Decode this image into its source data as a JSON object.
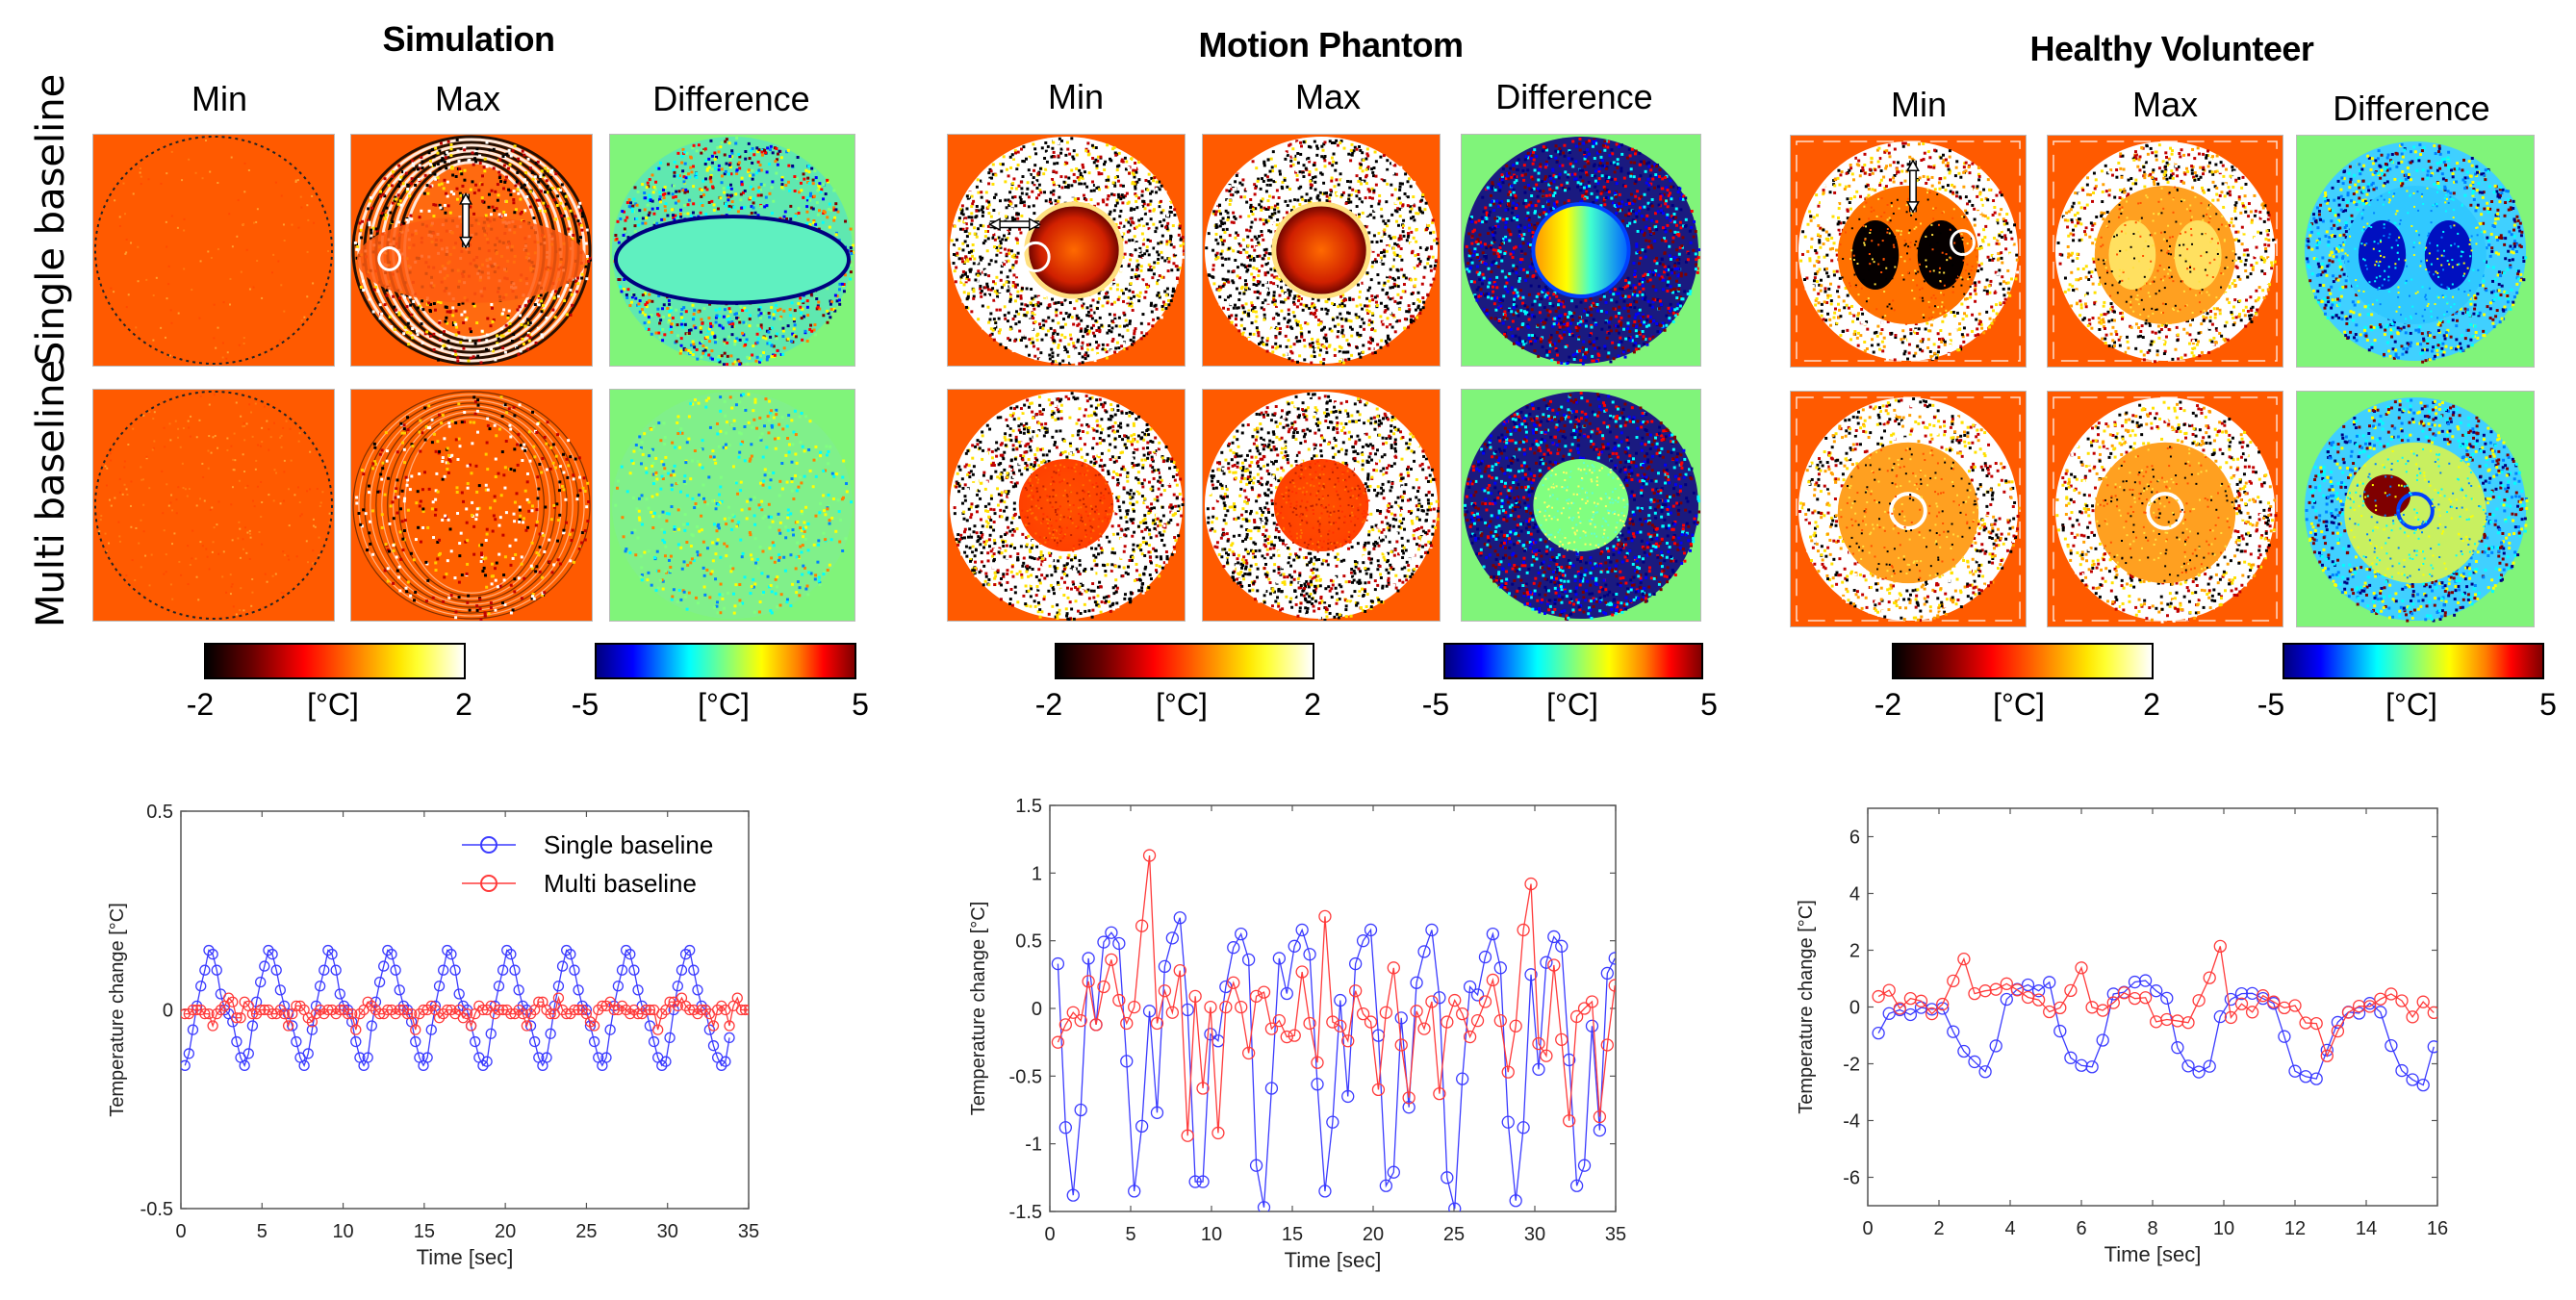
{
  "groups": [
    {
      "title": "Simulation",
      "columns": [
        "Min",
        "Max",
        "Difference"
      ],
      "theme": "simulation"
    },
    {
      "title": "Motion Phantom",
      "columns": [
        "Min",
        "Max",
        "Difference"
      ],
      "theme": "phantom"
    },
    {
      "title": "Healthy Volunteer",
      "columns": [
        "Min",
        "Max",
        "Difference"
      ],
      "theme": "volunteer"
    }
  ],
  "row_labels": [
    "Single baseline",
    "Multi baseline"
  ],
  "colorbars": {
    "temperature": {
      "colormap": "hot",
      "min_label": "-2",
      "unit_label": "[°C]",
      "max_label": "2"
    },
    "difference": {
      "colormap": "jet",
      "min_label": "-5",
      "unit_label": "[°C]",
      "max_label": "5"
    }
  },
  "colors": {
    "single_baseline": "#3b3bff",
    "multi_baseline": "#ff3b3b",
    "map_background_orange": "#ff5a00",
    "map_background_green": "#80f47a"
  },
  "chart_data": [
    {
      "type": "line",
      "title": "Simulation",
      "xlabel": "Time [sec]",
      "ylabel": "Temperature change [°C]",
      "xlim": [
        0,
        35
      ],
      "ylim": [
        -0.5,
        0.5
      ],
      "xticks": [
        0,
        5,
        10,
        15,
        20,
        25,
        30,
        35
      ],
      "yticks": [
        -0.5,
        0,
        0.5
      ],
      "ytick_labels": [
        "-0.5",
        "0",
        "0.5"
      ],
      "grid": false,
      "legend": {
        "placement": "top-right",
        "entries": [
          "Single baseline",
          "Multi baseline"
        ]
      },
      "series": [
        {
          "name": "Single baseline",
          "color": "#3b3bff",
          "marker": "circle",
          "x_start": 0.25,
          "x_step": 0.245,
          "values": [
            -0.14,
            -0.11,
            -0.05,
            0.01,
            0.06,
            0.1,
            0.15,
            0.14,
            0.1,
            0.04,
            0.0,
            -0.01,
            -0.03,
            -0.08,
            -0.12,
            -0.14,
            -0.11,
            -0.04,
            0.02,
            0.07,
            0.11,
            0.15,
            0.14,
            0.1,
            0.05,
            0.01,
            -0.01,
            -0.04,
            -0.08,
            -0.12,
            -0.14,
            -0.11,
            -0.05,
            0.01,
            0.06,
            0.1,
            0.15,
            0.14,
            0.1,
            0.04,
            0.01,
            0.0,
            -0.03,
            -0.08,
            -0.12,
            -0.14,
            -0.12,
            -0.04,
            0.02,
            0.07,
            0.11,
            0.15,
            0.14,
            0.1,
            0.05,
            0.01,
            0.0,
            -0.03,
            -0.08,
            -0.12,
            -0.14,
            -0.12,
            -0.05,
            0.01,
            0.06,
            0.1,
            0.15,
            0.14,
            0.1,
            0.04,
            0.01,
            0.0,
            -0.04,
            -0.08,
            -0.12,
            -0.14,
            -0.13,
            -0.06,
            0.01,
            0.06,
            0.1,
            0.15,
            0.14,
            0.1,
            0.05,
            0.01,
            0.0,
            -0.04,
            -0.08,
            -0.12,
            -0.14,
            -0.12,
            -0.06,
            0.01,
            0.06,
            0.11,
            0.15,
            0.14,
            0.1,
            0.05,
            0.01,
            0.0,
            -0.04,
            -0.08,
            -0.12,
            -0.14,
            -0.12,
            -0.05,
            0.01,
            0.06,
            0.1,
            0.15,
            0.14,
            0.1,
            0.05,
            0.01,
            0.0,
            -0.04,
            -0.08,
            -0.12,
            -0.14,
            -0.13,
            -0.07,
            0.0,
            0.06,
            0.1,
            0.14,
            0.15,
            0.1,
            0.05,
            0.01,
            0.0,
            -0.05,
            -0.09,
            -0.12,
            -0.14,
            -0.13,
            -0.07
          ]
        },
        {
          "name": "Multi baseline",
          "color": "#ff3b3b",
          "marker": "circle",
          "x_start": 0.25,
          "x_step": 0.245,
          "values": [
            -0.01,
            -0.01,
            0.0,
            0.0,
            0.0,
            -0.01,
            -0.01,
            -0.04,
            -0.01,
            0.0,
            0.01,
            0.03,
            0.02,
            -0.02,
            -0.02,
            0.02,
            0.01,
            -0.01,
            -0.01,
            0.0,
            0.0,
            0.0,
            -0.01,
            -0.01,
            0.0,
            -0.01,
            -0.04,
            -0.01,
            0.01,
            0.01,
            0.0,
            -0.02,
            -0.03,
            -0.01,
            0.0,
            -0.01,
            0.0,
            0.0,
            -0.01,
            0.0,
            0.0,
            -0.01,
            -0.01,
            -0.05,
            -0.01,
            0.0,
            0.02,
            0.01,
            0.0,
            -0.01,
            -0.01,
            0.0,
            0.0,
            -0.01,
            0.0,
            0.0,
            -0.01,
            -0.01,
            -0.05,
            -0.01,
            0.0,
            0.0,
            0.01,
            0.0,
            -0.02,
            -0.01,
            0.0,
            0.0,
            -0.01,
            0.0,
            -0.02,
            -0.01,
            -0.04,
            -0.01,
            0.01,
            0.0,
            0.0,
            0.01,
            -0.01,
            0.0,
            0.0,
            0.0,
            -0.01,
            -0.01,
            0.0,
            -0.01,
            -0.04,
            -0.01,
            0.0,
            0.02,
            0.02,
            0.0,
            -0.01,
            -0.01,
            0.03,
            0.0,
            -0.01,
            -0.01,
            0.0,
            0.0,
            0.0,
            -0.01,
            -0.03,
            -0.04,
            0.0,
            0.01,
            0.01,
            0.02,
            0.0,
            0.0,
            0.01,
            0.0,
            -0.01,
            0.0,
            -0.01,
            -0.01,
            0.0,
            0.0,
            0.0,
            -0.05,
            -0.01,
            0.0,
            0.02,
            0.02,
            0.01,
            0.03,
            0.01,
            0.0,
            0.0,
            -0.01,
            0.0,
            0.0,
            -0.01,
            -0.04,
            0.0,
            0.01,
            0.0,
            -0.04,
            0.01,
            0.03,
            0.0,
            0.0,
            0.0,
            0.0
          ]
        }
      ]
    },
    {
      "type": "line",
      "title": "Motion Phantom",
      "xlabel": "Time [sec]",
      "ylabel": "Temperature change [°C]",
      "xlim": [
        0,
        35
      ],
      "ylim": [
        -1.5,
        1.5
      ],
      "xticks": [
        0,
        5,
        10,
        15,
        20,
        25,
        30,
        35
      ],
      "yticks": [
        -1.5,
        -1,
        -0.5,
        0,
        0.5,
        1,
        1.5
      ],
      "ytick_labels": [
        "-1.5",
        "-1",
        "-0.5",
        "0",
        "0.5",
        "1",
        "1.5"
      ],
      "grid": false,
      "series": [
        {
          "name": "Single baseline",
          "color": "#3b3bff",
          "marker": "circle",
          "x_start": 0.5,
          "x_step": 0.472,
          "values": [
            0.33,
            -0.88,
            -1.38,
            -0.75,
            0.37,
            -0.12,
            0.49,
            0.56,
            0.48,
            -0.39,
            -1.35,
            -0.87,
            -0.02,
            -0.77,
            0.31,
            0.52,
            0.67,
            -0.01,
            -1.28,
            -1.28,
            -0.19,
            -0.24,
            0.16,
            0.45,
            0.55,
            0.36,
            -1.16,
            -1.47,
            -0.59,
            0.37,
            0.11,
            0.46,
            0.58,
            0.4,
            -0.56,
            -1.35,
            -0.84,
            0.06,
            -0.65,
            0.33,
            0.5,
            0.58,
            -0.2,
            -1.31,
            -1.21,
            -0.07,
            -0.73,
            0.19,
            0.42,
            0.58,
            0.08,
            -1.25,
            -1.48,
            -0.52,
            0.16,
            0.1,
            0.38,
            0.55,
            0.3,
            -0.84,
            -1.42,
            -0.88,
            0.25,
            -0.45,
            0.34,
            0.53,
            0.46,
            -0.38,
            -1.31,
            -1.16,
            -0.13,
            -0.9,
            0.26,
            0.37
          ]
        },
        {
          "name": "Multi baseline",
          "color": "#ff3b3b",
          "marker": "circle",
          "x_start": 0.5,
          "x_step": 0.472,
          "values": [
            -0.25,
            -0.12,
            -0.03,
            -0.09,
            0.2,
            -0.12,
            0.16,
            0.36,
            0.06,
            -0.11,
            0.01,
            0.61,
            1.13,
            -0.11,
            0.13,
            -0.03,
            0.28,
            -0.94,
            0.09,
            -0.59,
            0.01,
            -0.92,
            0.01,
            0.19,
            0.01,
            -0.33,
            0.09,
            0.12,
            -0.15,
            -0.09,
            -0.21,
            -0.2,
            0.27,
            -0.11,
            -0.4,
            0.68,
            -0.1,
            -0.13,
            -0.24,
            0.13,
            -0.04,
            -0.1,
            -0.6,
            -0.03,
            0.3,
            -0.27,
            -0.66,
            -0.02,
            -0.15,
            0.05,
            -0.63,
            -0.1,
            0.06,
            -0.04,
            -0.21,
            -0.09,
            0.05,
            0.21,
            -0.09,
            -0.47,
            -0.13,
            0.58,
            0.92,
            -0.26,
            -0.35,
            0.32,
            -0.23,
            -0.83,
            -0.06,
            0.0,
            0.05,
            -0.8,
            -0.27,
            0.17
          ]
        }
      ]
    },
    {
      "type": "line",
      "title": "Healthy Volunteer",
      "xlabel": "Time [sec]",
      "ylabel": "Temperature change [°C]",
      "xlim": [
        0,
        16
      ],
      "ylim": [
        -7,
        7
      ],
      "xticks": [
        0,
        2,
        4,
        6,
        8,
        10,
        12,
        14,
        16
      ],
      "yticks": [
        -6,
        -4,
        -2,
        0,
        2,
        4,
        6
      ],
      "ytick_labels": [
        "-6",
        "-4",
        "-2",
        "0",
        "2",
        "4",
        "6"
      ],
      "grid": false,
      "series": [
        {
          "name": "Single baseline",
          "color": "#3b3bff",
          "marker": "circle",
          "x_start": 0.3,
          "x_step": 0.3,
          "values": [
            -0.92,
            -0.23,
            -0.1,
            -0.27,
            -0.02,
            -0.08,
            -0.05,
            -0.87,
            -1.56,
            -1.93,
            -2.28,
            -1.37,
            0.27,
            0.62,
            0.78,
            0.57,
            0.87,
            -0.85,
            -1.79,
            -2.06,
            -2.11,
            -1.17,
            0.46,
            0.52,
            0.88,
            0.93,
            0.57,
            0.31,
            -1.43,
            -2.08,
            -2.29,
            -2.09,
            -0.34,
            0.27,
            0.47,
            0.48,
            0.3,
            0.13,
            -1.04,
            -2.26,
            -2.45,
            -2.53,
            -1.52,
            -0.54,
            -0.18,
            -0.22,
            0.13,
            -0.18,
            -1.36,
            -2.24,
            -2.56,
            -2.75,
            -1.4
          ]
        },
        {
          "name": "Multi baseline",
          "color": "#ff3b3b",
          "marker": "circle",
          "x_start": 0.3,
          "x_step": 0.3,
          "values": [
            0.37,
            0.59,
            -0.05,
            0.3,
            0.21,
            -0.24,
            0.1,
            0.92,
            1.69,
            0.47,
            0.57,
            0.62,
            0.82,
            0.6,
            0.34,
            0.25,
            -0.17,
            -0.03,
            0.58,
            1.38,
            -0.01,
            -0.12,
            0.15,
            0.5,
            0.3,
            0.33,
            -0.52,
            -0.44,
            -0.49,
            -0.55,
            0.23,
            1.03,
            2.14,
            -0.37,
            0.11,
            -0.18,
            0.4,
            0.18,
            -0.03,
            0.05,
            -0.56,
            -0.58,
            -1.72,
            -0.85,
            -0.19,
            0.03,
            0.02,
            0.28,
            0.46,
            0.22,
            -0.35,
            0.18,
            -0.2
          ]
        }
      ]
    }
  ]
}
